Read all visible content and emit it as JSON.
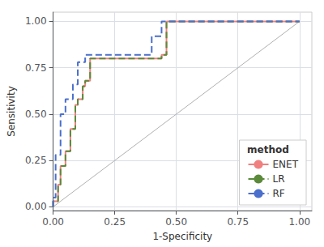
{
  "chart_data": {
    "type": "line",
    "xlabel": "1-Specificity",
    "ylabel": "Sensitivity",
    "xlim": [
      0.0,
      1.05
    ],
    "ylim": [
      -0.02,
      1.05
    ],
    "xticks": [
      {
        "value": 0.0,
        "label": "0.00"
      },
      {
        "value": 0.25,
        "label": "0.25"
      },
      {
        "value": 0.5,
        "label": "0.50"
      },
      {
        "value": 0.75,
        "label": "0.75"
      },
      {
        "value": 1.0,
        "label": "1.00"
      }
    ],
    "yticks": [
      {
        "value": 0.0,
        "label": "0.00"
      },
      {
        "value": 0.25,
        "label": "0.25"
      },
      {
        "value": 0.5,
        "label": "0.50"
      },
      {
        "value": 0.75,
        "label": "0.75"
      },
      {
        "value": 1.0,
        "label": "1.00"
      }
    ],
    "grid": true,
    "legend": "lower right",
    "legend_title": "method",
    "series": [
      {
        "color": "#b0b0b0",
        "line_style": "solid",
        "x": [
          0,
          1
        ],
        "values": [
          0,
          1
        ]
      },
      {
        "name": "ENET",
        "color": "#F08080",
        "line_style": "solid",
        "x": [
          0.0,
          0.0,
          0.02,
          0.02,
          0.03,
          0.03,
          0.05,
          0.05,
          0.07,
          0.07,
          0.09,
          0.09,
          0.1,
          0.1,
          0.12,
          0.12,
          0.13,
          0.13,
          0.15,
          0.15,
          0.44,
          0.44,
          0.46,
          0.46,
          1.0
        ],
        "values": [
          0.0,
          0.03,
          0.03,
          0.12,
          0.12,
          0.22,
          0.22,
          0.3,
          0.3,
          0.42,
          0.42,
          0.55,
          0.55,
          0.58,
          0.58,
          0.65,
          0.65,
          0.68,
          0.68,
          0.8,
          0.8,
          0.82,
          0.82,
          1.0,
          1.0
        ]
      },
      {
        "name": "LR",
        "color": "#5a8a3a",
        "line_style": "dashed",
        "x": [
          0.0,
          0.0,
          0.02,
          0.02,
          0.03,
          0.03,
          0.05,
          0.05,
          0.07,
          0.07,
          0.09,
          0.09,
          0.1,
          0.1,
          0.12,
          0.12,
          0.13,
          0.13,
          0.15,
          0.15,
          0.44,
          0.44,
          0.46,
          0.46,
          1.0
        ],
        "values": [
          0.0,
          0.03,
          0.03,
          0.12,
          0.12,
          0.22,
          0.22,
          0.3,
          0.3,
          0.42,
          0.42,
          0.55,
          0.55,
          0.58,
          0.58,
          0.65,
          0.65,
          0.68,
          0.68,
          0.8,
          0.8,
          0.82,
          0.82,
          1.0,
          1.0
        ]
      },
      {
        "name": "RF",
        "color": "#4a6fcc",
        "line_style": "dashed",
        "x": [
          0.0,
          0.0,
          0.01,
          0.01,
          0.03,
          0.03,
          0.05,
          0.05,
          0.08,
          0.08,
          0.1,
          0.1,
          0.13,
          0.13,
          0.4,
          0.4,
          0.44,
          0.44,
          1.0
        ],
        "values": [
          0.0,
          0.05,
          0.05,
          0.28,
          0.28,
          0.5,
          0.5,
          0.58,
          0.58,
          0.66,
          0.66,
          0.78,
          0.78,
          0.82,
          0.82,
          0.92,
          0.92,
          1.0,
          1.0
        ]
      }
    ]
  }
}
